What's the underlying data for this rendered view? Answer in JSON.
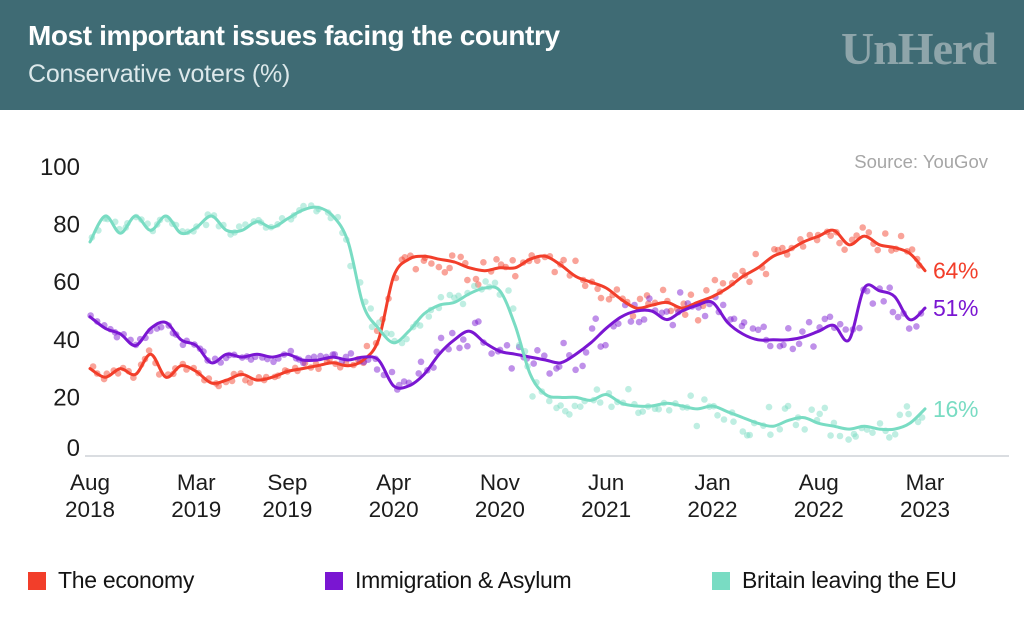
{
  "header": {
    "title": "Most important issues facing the country",
    "subtitle": "Conservative voters (%)",
    "logo": "UnHerd",
    "bg_color": "#3f6b74",
    "logo_color": "#8ea5aa"
  },
  "source_note": "Source: YouGov",
  "chart_data": {
    "type": "line",
    "title": "Most important issues facing the country",
    "subtitle": "Conservative voters (%)",
    "x_unit": "months since Aug 2018",
    "xlim": [
      0,
      55
    ],
    "ylim": [
      0,
      100
    ],
    "y_ticks": [
      "0",
      "20",
      "40",
      "60",
      "80",
      "100"
    ],
    "y_tick_values": [
      0,
      20,
      40,
      60,
      80,
      100
    ],
    "grid": "off",
    "legend_position": "bottom",
    "x_ticks": [
      {
        "month": "Aug",
        "year": "2018",
        "index": 0
      },
      {
        "month": "Mar",
        "year": "2019",
        "index": 7
      },
      {
        "month": "Sep",
        "year": "2019",
        "index": 13
      },
      {
        "month": "Apr",
        "year": "2020",
        "index": 20
      },
      {
        "month": "Nov",
        "year": "2020",
        "index": 27
      },
      {
        "month": "Jun",
        "year": "2021",
        "index": 34
      },
      {
        "month": "Jan",
        "year": "2022",
        "index": 41
      },
      {
        "month": "Aug",
        "year": "2022",
        "index": 48
      },
      {
        "month": "Mar",
        "year": "2023",
        "index": 55
      }
    ],
    "series": [
      {
        "name": "The economy",
        "color": "#f23e2a",
        "end_label": "64%",
        "end_value": 64,
        "values": [
          30,
          27,
          30,
          28,
          35,
          27,
          31,
          29,
          25,
          26,
          28,
          26,
          27,
          29,
          30,
          31,
          32,
          31,
          33,
          40,
          62,
          68,
          69,
          68,
          67,
          65,
          64,
          65,
          65,
          68,
          69,
          66,
          62,
          60,
          58,
          54,
          51,
          52,
          53,
          51,
          53,
          55,
          58,
          62,
          65,
          69,
          71,
          74,
          76,
          78,
          73,
          76,
          73,
          72,
          70,
          64
        ]
      },
      {
        "name": "Immigration & Asylum",
        "color": "#7a16d2",
        "end_label": "51%",
        "end_value": 51,
        "values": [
          48,
          44,
          42,
          38,
          44,
          46,
          40,
          38,
          32,
          35,
          34,
          35,
          34,
          35,
          33,
          33,
          34,
          33,
          34,
          33,
          24,
          24,
          28,
          35,
          40,
          43,
          39,
          36,
          35,
          34,
          33,
          32,
          35,
          39,
          44,
          48,
          50,
          50,
          47,
          50,
          52,
          53,
          46,
          42,
          40,
          40,
          40,
          41,
          43,
          45,
          40,
          58,
          57,
          55,
          47,
          51
        ]
      },
      {
        "name": "Britain leaving the EU",
        "color": "#79dcc3",
        "end_label": "16%",
        "end_value": 16,
        "values": [
          74,
          83,
          77,
          83,
          78,
          83,
          77,
          79,
          83,
          78,
          78,
          81,
          79,
          82,
          85,
          86,
          83,
          74,
          52,
          44,
          39,
          43,
          49,
          52,
          53,
          56,
          58,
          57,
          45,
          28,
          21,
          20,
          20,
          19,
          21,
          18,
          17,
          17,
          18,
          17,
          16,
          17,
          15,
          13,
          11,
          10,
          12,
          13,
          11,
          10,
          9,
          10,
          9,
          9,
          11,
          16
        ]
      }
    ],
    "scatter": {
      "visible": true,
      "dot_radius": 3.3,
      "dot_opacity": 0.48,
      "step_months": 0.35,
      "jitter_base": 1.1,
      "jitter_max": 4.3
    },
    "axis_color": "#1c1c1c",
    "baseline_color": "#dadde1"
  }
}
